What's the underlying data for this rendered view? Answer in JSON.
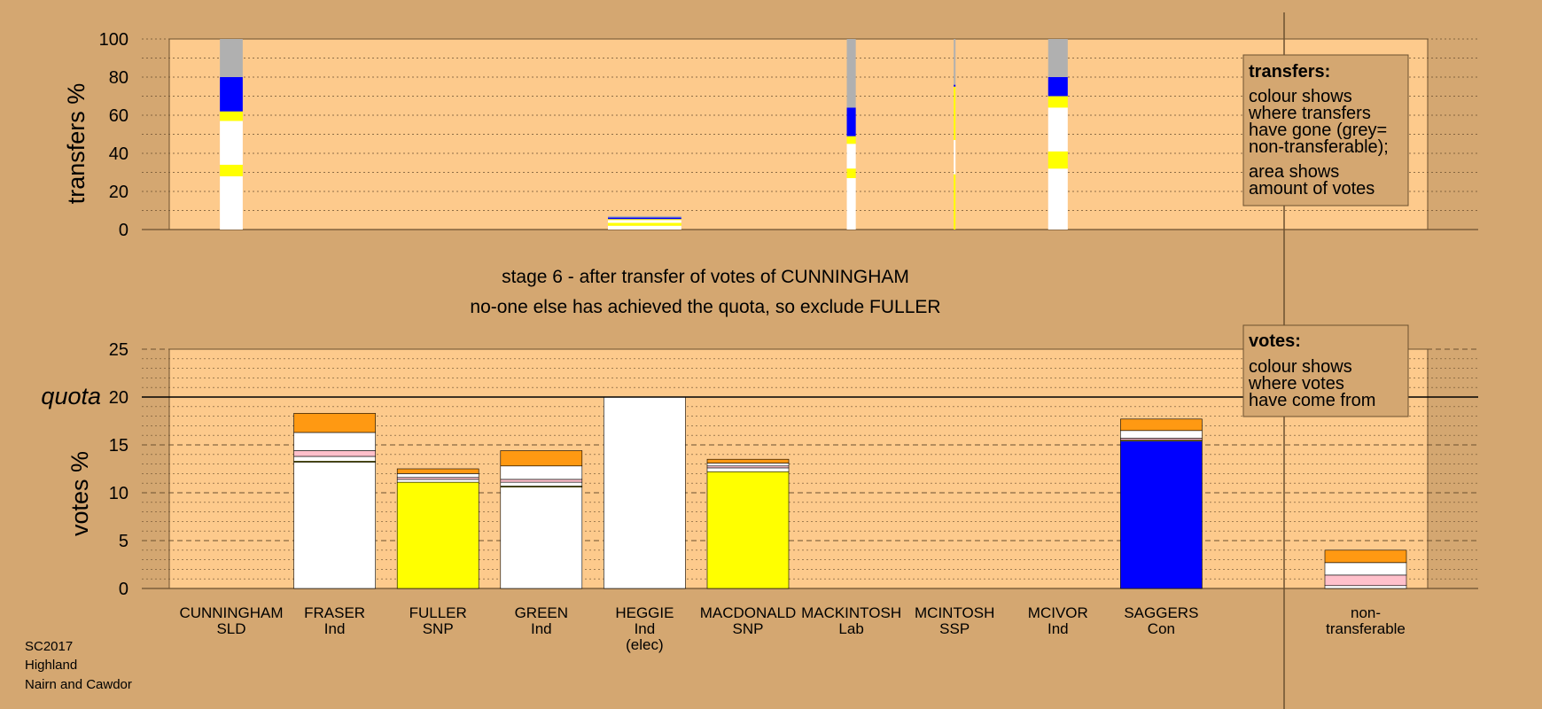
{
  "stage_text": {
    "line1": "stage 6 - after transfer of votes of CUNNINGHAM",
    "line2": "no-one else has achieved the quota, so exclude FULLER"
  },
  "footer": [
    "SC2017",
    "Highland",
    "Nairn and Cawdor"
  ],
  "legend_transfers": {
    "title": "transfers:",
    "lines": [
      "colour shows",
      "where transfers",
      "have gone (grey=",
      "non-transferable);"
    ],
    "lines2": [
      "area shows",
      "amount of votes"
    ]
  },
  "legend_votes": {
    "title": "votes:",
    "lines": [
      "colour shows",
      "where votes",
      "have come from"
    ]
  },
  "colors": {
    "background": "#d4a771",
    "plot": "#fdca8c",
    "SLD": "#ffff00",
    "Ind": "#ffffff",
    "SNP": "#ffff00",
    "Con": "#0000ff",
    "Lab": "#ff9912",
    "SSP": "#ffc0cb",
    "nontransferable": "#b0b0b0"
  },
  "candidates": [
    {
      "name": "CUNNINGHAM",
      "party": "SLD"
    },
    {
      "name": "FRASER",
      "party": "Ind"
    },
    {
      "name": "FULLER",
      "party": "SNP"
    },
    {
      "name": "GREEN",
      "party": "Ind"
    },
    {
      "name": "HEGGIE",
      "party": "Ind",
      "note": "(elec)"
    },
    {
      "name": "MACDONALD",
      "party": "SNP"
    },
    {
      "name": "MACKINTOSH",
      "party": "Lab"
    },
    {
      "name": "MCINTOSH",
      "party": "SSP"
    },
    {
      "name": "MCIVOR",
      "party": "Ind"
    },
    {
      "name": "SAGGERS",
      "party": "Con"
    },
    {
      "name": "non-\ntransferable",
      "party": ""
    }
  ],
  "chart_data": [
    {
      "type": "bar",
      "ylabel": "transfers %",
      "ylim": [
        0,
        100
      ],
      "yticks": [
        0,
        20,
        40,
        60,
        80,
        100
      ],
      "grid": true,
      "description_categories": [
        "CUNNINGHAM",
        "HEGGIE",
        "MACKINTOSH",
        "MCINTOSH",
        "MCIVOR"
      ],
      "stacks": [
        {
          "candidate": "CUNNINGHAM",
          "width_share": 0.28,
          "segments": [
            {
              "color": "#ffffff",
              "value": 28
            },
            {
              "color": "#ffff00",
              "value": 6
            },
            {
              "color": "#ffffff",
              "value": 23
            },
            {
              "color": "#ffff00",
              "value": 5
            },
            {
              "color": "#0000ff",
              "value": 18
            },
            {
              "color": "#b0b0b0",
              "value": 20
            }
          ]
        },
        {
          "candidate": "HEGGIE",
          "width_share": 0.9,
          "segments": [
            {
              "color": "#ffffff",
              "value": 2
            },
            {
              "color": "#ffff00",
              "value": 1.5
            },
            {
              "color": "#ffffff",
              "value": 1.5
            },
            {
              "color": "#ffff00",
              "value": 0.5
            },
            {
              "color": "#0000ff",
              "value": 0.8
            },
            {
              "color": "#b0b0b0",
              "value": 0.7
            }
          ]
        },
        {
          "candidate": "MACKINTOSH",
          "width_share": 0.11,
          "segments": [
            {
              "color": "#ffffff",
              "value": 27
            },
            {
              "color": "#ffff00",
              "value": 5
            },
            {
              "color": "#ffffff",
              "value": 13
            },
            {
              "color": "#ffff00",
              "value": 4
            },
            {
              "color": "#0000ff",
              "value": 15
            },
            {
              "color": "#b0b0b0",
              "value": 36
            }
          ]
        },
        {
          "candidate": "MCINTOSH",
          "width_share": 0.02,
          "segments": [
            {
              "color": "#ffff00",
              "value": 29
            },
            {
              "color": "#ffffff",
              "value": 18
            },
            {
              "color": "#ffff00",
              "value": 28
            },
            {
              "color": "#0000ff",
              "value": 1
            },
            {
              "color": "#b0b0b0",
              "value": 24
            }
          ]
        },
        {
          "candidate": "MCIVOR",
          "width_share": 0.24,
          "segments": [
            {
              "color": "#ffffff",
              "value": 32
            },
            {
              "color": "#ffff00",
              "value": 9
            },
            {
              "color": "#ffffff",
              "value": 23
            },
            {
              "color": "#ffff00",
              "value": 6
            },
            {
              "color": "#0000ff",
              "value": 10
            },
            {
              "color": "#b0b0b0",
              "value": 20
            }
          ]
        }
      ]
    },
    {
      "type": "bar",
      "ylabel": "votes %",
      "ylim": [
        0,
        25
      ],
      "yticks": [
        0,
        5,
        10,
        15,
        20,
        25
      ],
      "quota": 20,
      "quota_label": "quota",
      "grid": true,
      "stacks": [
        {
          "candidate": "CUNNINGHAM",
          "segments": []
        },
        {
          "candidate": "FRASER",
          "segments": [
            {
              "color": "#ffffff",
              "value": 13.2
            },
            {
              "color": "#ffff00",
              "value": 0.1
            },
            {
              "color": "#ffffff",
              "value": 0.5
            },
            {
              "color": "#ffc0cb",
              "value": 0.6
            },
            {
              "color": "#ffffff",
              "value": 1.9
            },
            {
              "color": "#ff9912",
              "value": 2.0
            }
          ]
        },
        {
          "candidate": "FULLER",
          "segments": [
            {
              "color": "#ffff00",
              "value": 11.1
            },
            {
              "color": "#ffffff",
              "value": 0.3
            },
            {
              "color": "#ffc0cb",
              "value": 0.2
            },
            {
              "color": "#ffffff",
              "value": 0.4
            },
            {
              "color": "#ff9912",
              "value": 0.5
            }
          ]
        },
        {
          "candidate": "GREEN",
          "segments": [
            {
              "color": "#ffffff",
              "value": 10.6
            },
            {
              "color": "#ffff00",
              "value": 0.1
            },
            {
              "color": "#ffffff",
              "value": 0.4
            },
            {
              "color": "#ffc0cb",
              "value": 0.3
            },
            {
              "color": "#ffffff",
              "value": 1.4
            },
            {
              "color": "#ff9912",
              "value": 1.6
            }
          ]
        },
        {
          "candidate": "HEGGIE",
          "segments": [
            {
              "color": "#ffffff",
              "value": 20.0
            }
          ]
        },
        {
          "candidate": "MACDONALD",
          "segments": [
            {
              "color": "#ffff00",
              "value": 12.2
            },
            {
              "color": "#ffffff",
              "value": 0.4
            },
            {
              "color": "#ffc0cb",
              "value": 0.2
            },
            {
              "color": "#ffffff",
              "value": 0.3
            },
            {
              "color": "#ff9912",
              "value": 0.4
            }
          ]
        },
        {
          "candidate": "MACKINTOSH",
          "segments": []
        },
        {
          "candidate": "MCINTOSH",
          "segments": []
        },
        {
          "candidate": "MCIVOR",
          "segments": []
        },
        {
          "candidate": "SAGGERS",
          "segments": [
            {
              "color": "#0000ff",
              "value": 15.4
            },
            {
              "color": "#ffff00",
              "value": 0.1
            },
            {
              "color": "#ffc0cb",
              "value": 0.2
            },
            {
              "color": "#ffffff",
              "value": 0.8
            },
            {
              "color": "#ff9912",
              "value": 1.2
            }
          ]
        },
        {
          "candidate": "non-transferable",
          "segments": [
            {
              "color": "#ffffff",
              "value": 0.3
            },
            {
              "color": "#ffc0cb",
              "value": 1.1
            },
            {
              "color": "#ffffff",
              "value": 1.3
            },
            {
              "color": "#ff9912",
              "value": 1.3
            }
          ]
        }
      ]
    }
  ]
}
